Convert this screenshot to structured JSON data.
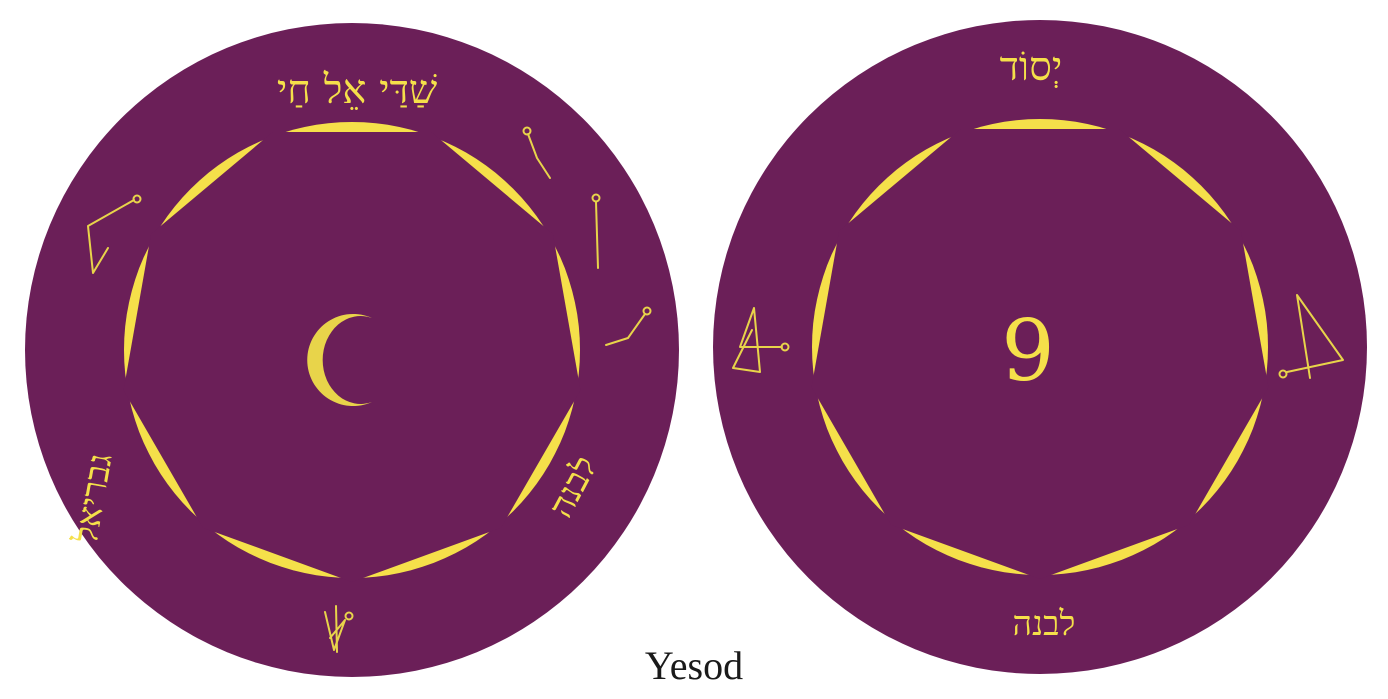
{
  "left_seal": {
    "top_text": "שַׁדַּי אֵל חַי",
    "center_symbol": "☽",
    "left_text": "גבריאל",
    "right_text": "לבנה",
    "ring_color": "#f5e04a",
    "field_color": "#6b1f58"
  },
  "right_seal": {
    "top_text": "יְסוֹד",
    "center_number": "9",
    "bottom_text": "לבנה",
    "ring_color": "#f5e04a",
    "field_color": "#6b1f58"
  },
  "caption": "Yesod"
}
